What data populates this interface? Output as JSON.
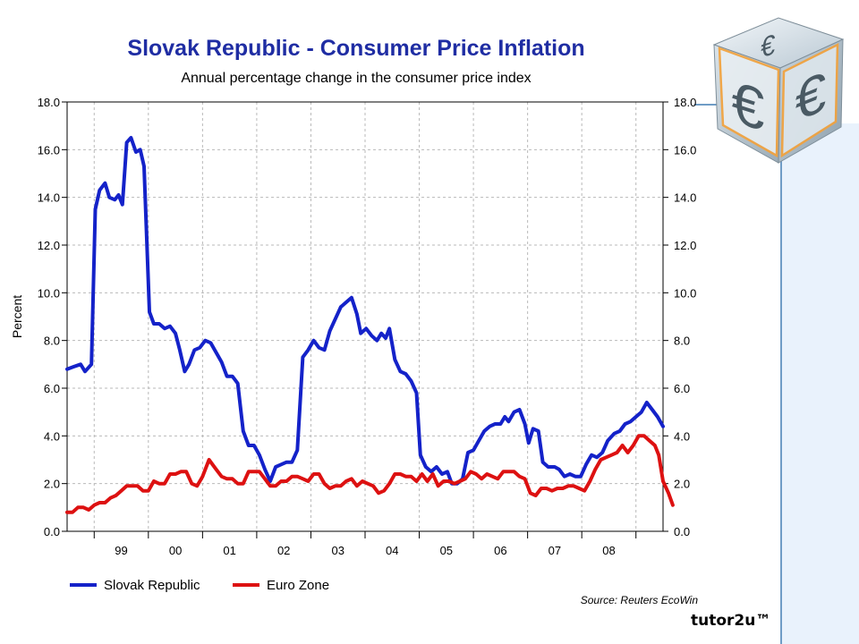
{
  "brand": "tutor2u™",
  "cube_glyph": "€",
  "chart_data": {
    "type": "line",
    "title": "Slovak Republic - Consumer Price Inflation",
    "subtitle": "Annual percentage change in the consumer price index",
    "ylabel": "Percent",
    "ylim": [
      0,
      18
    ],
    "yticks": [
      "0.0",
      "2.0",
      "4.0",
      "6.0",
      "8.0",
      "10.0",
      "12.0",
      "14.0",
      "16.0",
      "18.0"
    ],
    "xlim": [
      1998.0,
      2009.0
    ],
    "x_tick_labels": [
      "99",
      "00",
      "01",
      "02",
      "03",
      "04",
      "05",
      "06",
      "07",
      "08"
    ],
    "x_tick_positions": [
      1999.0,
      2000.0,
      2001.0,
      2002.0,
      2003.0,
      2004.0,
      2005.0,
      2006.0,
      2007.0,
      2008.0
    ],
    "grid": true,
    "legend_position": "bottom-left",
    "source": "Source: Reuters EcoWin",
    "series": [
      {
        "name": "Slovak Republic",
        "color": "#1422c9",
        "points": [
          [
            1998.0,
            6.8
          ],
          [
            1998.12,
            6.9
          ],
          [
            1998.25,
            7.0
          ],
          [
            1998.33,
            6.7
          ],
          [
            1998.45,
            7.0
          ],
          [
            1998.52,
            13.5
          ],
          [
            1998.6,
            14.3
          ],
          [
            1998.7,
            14.6
          ],
          [
            1998.78,
            14.0
          ],
          [
            1998.88,
            13.9
          ],
          [
            1998.95,
            14.1
          ],
          [
            1999.02,
            13.7
          ],
          [
            1999.1,
            16.3
          ],
          [
            1999.18,
            16.5
          ],
          [
            1999.27,
            15.9
          ],
          [
            1999.35,
            16.0
          ],
          [
            1999.42,
            15.3
          ],
          [
            1999.52,
            9.2
          ],
          [
            1999.6,
            8.7
          ],
          [
            1999.7,
            8.7
          ],
          [
            1999.8,
            8.5
          ],
          [
            1999.9,
            8.6
          ],
          [
            2000.0,
            8.3
          ],
          [
            2000.08,
            7.6
          ],
          [
            2000.17,
            6.7
          ],
          [
            2000.25,
            7.0
          ],
          [
            2000.35,
            7.6
          ],
          [
            2000.45,
            7.7
          ],
          [
            2000.55,
            8.0
          ],
          [
            2000.65,
            7.9
          ],
          [
            2000.75,
            7.5
          ],
          [
            2000.85,
            7.1
          ],
          [
            2000.95,
            6.5
          ],
          [
            2001.05,
            6.5
          ],
          [
            2001.15,
            6.2
          ],
          [
            2001.25,
            4.2
          ],
          [
            2001.35,
            3.6
          ],
          [
            2001.45,
            3.6
          ],
          [
            2001.55,
            3.2
          ],
          [
            2001.65,
            2.6
          ],
          [
            2001.75,
            2.1
          ],
          [
            2001.85,
            2.7
          ],
          [
            2001.95,
            2.8
          ],
          [
            2002.05,
            2.9
          ],
          [
            2002.15,
            2.9
          ],
          [
            2002.25,
            3.4
          ],
          [
            2002.35,
            7.3
          ],
          [
            2002.45,
            7.6
          ],
          [
            2002.55,
            8.0
          ],
          [
            2002.65,
            7.7
          ],
          [
            2002.75,
            7.6
          ],
          [
            2002.85,
            8.4
          ],
          [
            2002.95,
            8.9
          ],
          [
            2003.05,
            9.4
          ],
          [
            2003.15,
            9.6
          ],
          [
            2003.25,
            9.8
          ],
          [
            2003.35,
            9.1
          ],
          [
            2003.42,
            8.3
          ],
          [
            2003.52,
            8.5
          ],
          [
            2003.62,
            8.2
          ],
          [
            2003.72,
            8.0
          ],
          [
            2003.8,
            8.3
          ],
          [
            2003.88,
            8.1
          ],
          [
            2003.95,
            8.5
          ],
          [
            2004.05,
            7.2
          ],
          [
            2004.15,
            6.7
          ],
          [
            2004.25,
            6.6
          ],
          [
            2004.35,
            6.3
          ],
          [
            2004.45,
            5.8
          ],
          [
            2004.52,
            3.2
          ],
          [
            2004.62,
            2.7
          ],
          [
            2004.72,
            2.5
          ],
          [
            2004.82,
            2.7
          ],
          [
            2004.92,
            2.4
          ],
          [
            2005.02,
            2.5
          ],
          [
            2005.1,
            2.0
          ],
          [
            2005.2,
            2.0
          ],
          [
            2005.3,
            2.2
          ],
          [
            2005.4,
            3.3
          ],
          [
            2005.5,
            3.4
          ],
          [
            2005.6,
            3.8
          ],
          [
            2005.7,
            4.2
          ],
          [
            2005.8,
            4.4
          ],
          [
            2005.9,
            4.5
          ],
          [
            2006.0,
            4.5
          ],
          [
            2006.08,
            4.8
          ],
          [
            2006.15,
            4.6
          ],
          [
            2006.25,
            5.0
          ],
          [
            2006.35,
            5.1
          ],
          [
            2006.45,
            4.5
          ],
          [
            2006.52,
            3.7
          ],
          [
            2006.6,
            4.3
          ],
          [
            2006.7,
            4.2
          ],
          [
            2006.78,
            2.9
          ],
          [
            2006.88,
            2.7
          ],
          [
            2007.0,
            2.7
          ],
          [
            2007.08,
            2.6
          ],
          [
            2007.18,
            2.3
          ],
          [
            2007.28,
            2.4
          ],
          [
            2007.38,
            2.3
          ],
          [
            2007.48,
            2.3
          ],
          [
            2007.58,
            2.8
          ],
          [
            2007.68,
            3.2
          ],
          [
            2007.78,
            3.1
          ],
          [
            2007.88,
            3.3
          ],
          [
            2007.98,
            3.8
          ],
          [
            2008.1,
            4.1
          ],
          [
            2008.2,
            4.2
          ],
          [
            2008.3,
            4.5
          ],
          [
            2008.4,
            4.6
          ],
          [
            2008.5,
            4.8
          ],
          [
            2008.6,
            5.0
          ],
          [
            2008.7,
            5.4
          ],
          [
            2008.8,
            5.1
          ],
          [
            2008.9,
            4.8
          ],
          [
            2009.0,
            4.4
          ]
        ]
      },
      {
        "name": "Euro Zone",
        "color": "#dd1111",
        "points": [
          [
            1998.0,
            0.8
          ],
          [
            1998.1,
            0.8
          ],
          [
            1998.2,
            1.0
          ],
          [
            1998.3,
            1.0
          ],
          [
            1998.4,
            0.9
          ],
          [
            1998.5,
            1.1
          ],
          [
            1998.6,
            1.2
          ],
          [
            1998.7,
            1.2
          ],
          [
            1998.8,
            1.4
          ],
          [
            1998.9,
            1.5
          ],
          [
            1999.0,
            1.7
          ],
          [
            1999.1,
            1.9
          ],
          [
            1999.2,
            1.9
          ],
          [
            1999.3,
            1.9
          ],
          [
            1999.4,
            1.7
          ],
          [
            1999.5,
            1.7
          ],
          [
            1999.6,
            2.1
          ],
          [
            1999.7,
            2.0
          ],
          [
            1999.8,
            2.0
          ],
          [
            1999.9,
            2.4
          ],
          [
            2000.0,
            2.4
          ],
          [
            2000.1,
            2.5
          ],
          [
            2000.2,
            2.5
          ],
          [
            2000.3,
            2.0
          ],
          [
            2000.4,
            1.9
          ],
          [
            2000.5,
            2.3
          ],
          [
            2000.62,
            3.0
          ],
          [
            2000.75,
            2.6
          ],
          [
            2000.85,
            2.3
          ],
          [
            2000.95,
            2.2
          ],
          [
            2001.05,
            2.2
          ],
          [
            2001.15,
            2.0
          ],
          [
            2001.25,
            2.0
          ],
          [
            2001.35,
            2.5
          ],
          [
            2001.45,
            2.5
          ],
          [
            2001.55,
            2.5
          ],
          [
            2001.65,
            2.2
          ],
          [
            2001.75,
            1.9
          ],
          [
            2001.85,
            1.9
          ],
          [
            2001.95,
            2.1
          ],
          [
            2002.05,
            2.1
          ],
          [
            2002.15,
            2.3
          ],
          [
            2002.25,
            2.3
          ],
          [
            2002.35,
            2.2
          ],
          [
            2002.45,
            2.1
          ],
          [
            2002.55,
            2.4
          ],
          [
            2002.65,
            2.4
          ],
          [
            2002.75,
            2.0
          ],
          [
            2002.85,
            1.8
          ],
          [
            2002.95,
            1.9
          ],
          [
            2003.05,
            1.9
          ],
          [
            2003.15,
            2.1
          ],
          [
            2003.25,
            2.2
          ],
          [
            2003.35,
            1.9
          ],
          [
            2003.45,
            2.1
          ],
          [
            2003.55,
            2.0
          ],
          [
            2003.65,
            1.9
          ],
          [
            2003.75,
            1.6
          ],
          [
            2003.85,
            1.7
          ],
          [
            2003.95,
            2.0
          ],
          [
            2004.05,
            2.4
          ],
          [
            2004.15,
            2.4
          ],
          [
            2004.25,
            2.3
          ],
          [
            2004.35,
            2.3
          ],
          [
            2004.45,
            2.1
          ],
          [
            2004.55,
            2.4
          ],
          [
            2004.65,
            2.1
          ],
          [
            2004.75,
            2.4
          ],
          [
            2004.85,
            1.9
          ],
          [
            2004.95,
            2.1
          ],
          [
            2005.05,
            2.1
          ],
          [
            2005.15,
            2.0
          ],
          [
            2005.25,
            2.1
          ],
          [
            2005.35,
            2.2
          ],
          [
            2005.45,
            2.5
          ],
          [
            2005.55,
            2.4
          ],
          [
            2005.65,
            2.2
          ],
          [
            2005.75,
            2.4
          ],
          [
            2005.85,
            2.3
          ],
          [
            2005.95,
            2.2
          ],
          [
            2006.05,
            2.5
          ],
          [
            2006.15,
            2.5
          ],
          [
            2006.25,
            2.5
          ],
          [
            2006.35,
            2.3
          ],
          [
            2006.45,
            2.2
          ],
          [
            2006.55,
            1.6
          ],
          [
            2006.65,
            1.5
          ],
          [
            2006.75,
            1.8
          ],
          [
            2006.85,
            1.8
          ],
          [
            2006.95,
            1.7
          ],
          [
            2007.05,
            1.8
          ],
          [
            2007.15,
            1.8
          ],
          [
            2007.25,
            1.9
          ],
          [
            2007.35,
            1.9
          ],
          [
            2007.45,
            1.8
          ],
          [
            2007.55,
            1.7
          ],
          [
            2007.65,
            2.1
          ],
          [
            2007.75,
            2.6
          ],
          [
            2007.85,
            3.0
          ],
          [
            2007.95,
            3.1
          ],
          [
            2008.05,
            3.2
          ],
          [
            2008.15,
            3.3
          ],
          [
            2008.25,
            3.6
          ],
          [
            2008.35,
            3.3
          ],
          [
            2008.45,
            3.6
          ],
          [
            2008.55,
            4.0
          ],
          [
            2008.65,
            4.0
          ],
          [
            2008.75,
            3.8
          ],
          [
            2008.85,
            3.6
          ],
          [
            2008.92,
            3.2
          ],
          [
            2009.0,
            2.1
          ],
          [
            2009.1,
            1.6
          ],
          [
            2009.18,
            1.1
          ]
        ]
      }
    ]
  }
}
